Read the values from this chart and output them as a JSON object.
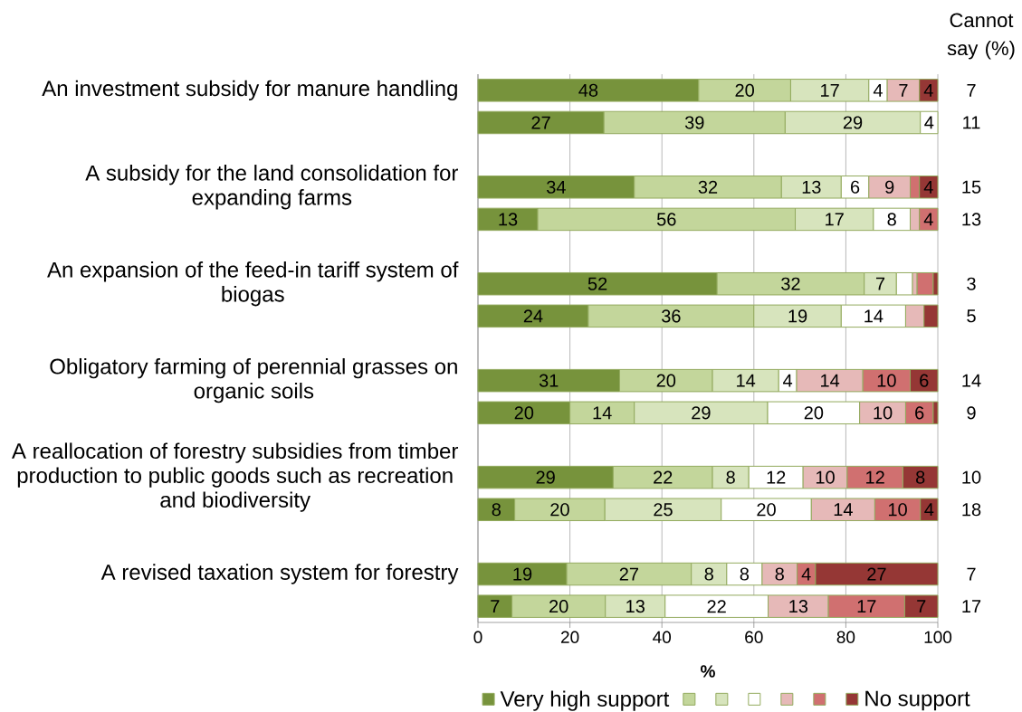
{
  "chart_data": {
    "type": "bar",
    "orientation": "horizontal",
    "stacked": true,
    "categories": [
      "An investment subsidy for manure handling",
      null,
      null,
      "A subsidy for the land consolidation for expanding farms",
      null,
      null,
      "An expansion of the feed-in tariff system of biogas",
      null,
      null,
      "Obligatory farming of perennial grasses on organic soils",
      null,
      null,
      "A reallocation of forestry subsidies from timber production to public goods such as recreation and biodiversity",
      null,
      null,
      "A revised taxation system for forestry",
      null
    ],
    "series": [
      {
        "name": "Very high support",
        "color": "#77933c",
        "values": [
          48,
          27.4,
          null,
          34,
          13,
          null,
          52,
          24,
          null,
          30.8,
          20,
          null,
          29.4,
          8,
          null,
          19.3,
          7.4
        ],
        "value_labels": [
          "48",
          "27",
          null,
          "34",
          "13",
          null,
          "52",
          "24",
          null,
          "31",
          "20",
          null,
          "29",
          "8",
          null,
          "19",
          "7"
        ]
      },
      {
        "color": "#c3d69b",
        "values": [
          20,
          39.4,
          null,
          32,
          56,
          null,
          32,
          36,
          null,
          20.2,
          14,
          null,
          21.6,
          19.6,
          null,
          27.1,
          20.3
        ],
        "value_labels": [
          "20",
          "39",
          null,
          "32",
          "56",
          null,
          "32",
          "36",
          null,
          "20",
          "14",
          null,
          "22",
          "20",
          null,
          "27",
          "20"
        ]
      },
      {
        "color": "#d7e4bd",
        "values": [
          17,
          29.4,
          null,
          13,
          17,
          null,
          7,
          19,
          null,
          14.4,
          29,
          null,
          7.9,
          25.3,
          null,
          7.7,
          13.0
        ],
        "value_labels": [
          "17",
          "29",
          null,
          "13",
          "17",
          null,
          "7",
          "19",
          null,
          "14",
          "29",
          null,
          "8",
          "25",
          null,
          "8",
          "13"
        ]
      },
      {
        "color": "#ffffff",
        "values": [
          4,
          3.8,
          null,
          6,
          8,
          null,
          3.5,
          14,
          null,
          3.9,
          20,
          null,
          11.8,
          19.6,
          null,
          7.7,
          22.4
        ],
        "value_labels": [
          "4",
          "4",
          null,
          "6",
          "8",
          null,
          null,
          "14",
          null,
          "4",
          "20",
          null,
          "12",
          "20",
          null,
          "8",
          "22"
        ]
      },
      {
        "color": "#e6b9b8",
        "values": [
          7,
          null,
          null,
          9,
          2,
          null,
          1,
          4,
          null,
          14.4,
          10,
          null,
          9.6,
          13.8,
          null,
          7.6,
          13.1
        ],
        "value_labels": [
          "7",
          null,
          null,
          "9",
          null,
          null,
          null,
          null,
          null,
          "14",
          "10",
          null,
          "10",
          "14",
          null,
          "8",
          "13"
        ]
      },
      {
        "color": "#d07070",
        "values": [
          null,
          null,
          null,
          2,
          4,
          null,
          3.5,
          null,
          null,
          10.3,
          6,
          null,
          12.1,
          9.9,
          null,
          4.0,
          16.6
        ],
        "value_labels": [
          null,
          null,
          null,
          null,
          "4",
          null,
          null,
          null,
          null,
          "10",
          "6",
          null,
          "12",
          "10",
          null,
          "4",
          "17"
        ]
      },
      {
        "name": "No support",
        "color": "#953735",
        "values": [
          4,
          null,
          null,
          4,
          null,
          null,
          1,
          3,
          null,
          6.0,
          1,
          null,
          7.6,
          3.8,
          null,
          26.6,
          7.2
        ],
        "value_labels": [
          "4",
          null,
          null,
          "4",
          null,
          null,
          null,
          null,
          null,
          "6",
          null,
          null,
          "8",
          "4",
          null,
          "27",
          "7"
        ]
      }
    ],
    "xlabel": "%",
    "xlim": [
      0,
      100
    ],
    "xticks": [
      0,
      20,
      40,
      60,
      80,
      100
    ],
    "grid": "x",
    "legend": "bottom",
    "annotations": [
      "Cannot say (%)",
      "7",
      "11",
      "15",
      "13",
      "3",
      "5",
      "14",
      "9",
      "10",
      "18",
      "7",
      "17"
    ]
  }
}
